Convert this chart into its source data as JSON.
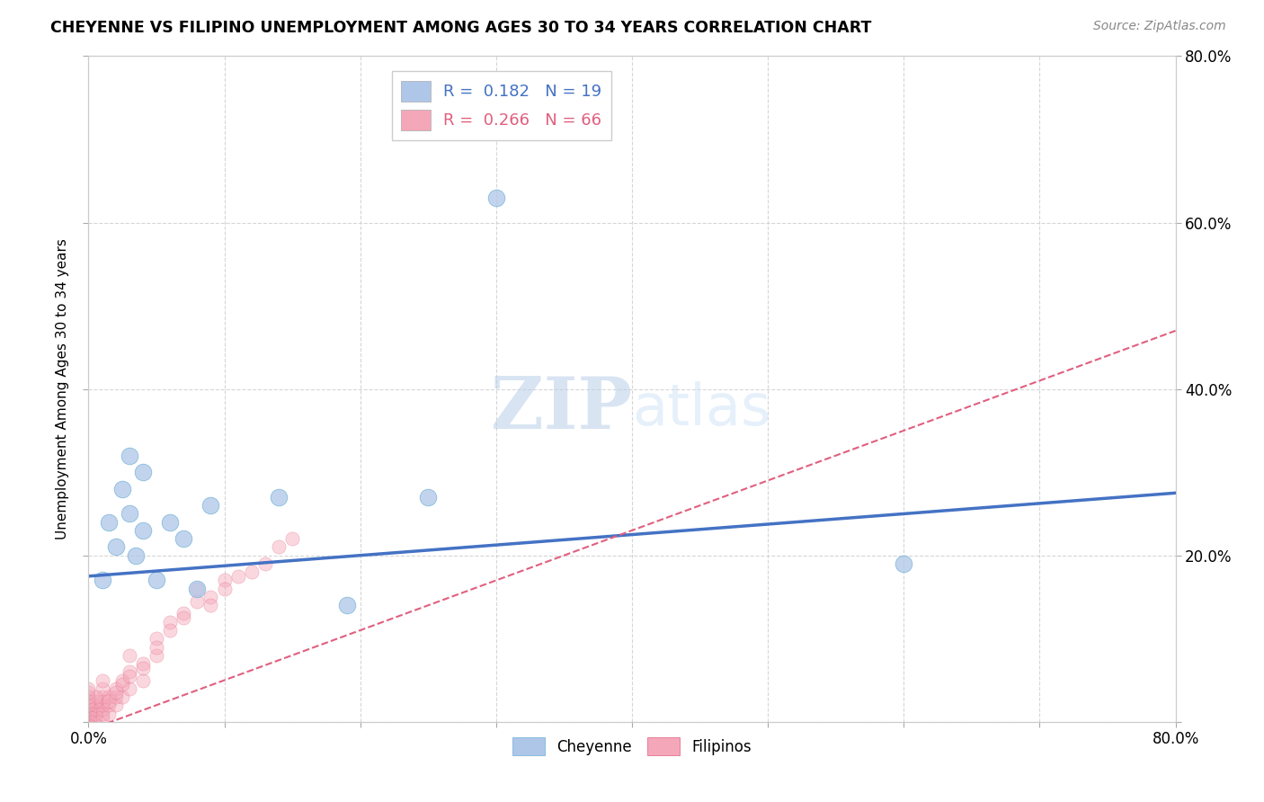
{
  "title": "CHEYENNE VS FILIPINO UNEMPLOYMENT AMONG AGES 30 TO 34 YEARS CORRELATION CHART",
  "source": "Source: ZipAtlas.com",
  "ylabel": "Unemployment Among Ages 30 to 34 years",
  "xlabel": "",
  "xlim": [
    0.0,
    0.8
  ],
  "ylim": [
    0.0,
    0.8
  ],
  "xticks": [
    0.0,
    0.1,
    0.2,
    0.3,
    0.4,
    0.5,
    0.6,
    0.7,
    0.8
  ],
  "yticks": [
    0.0,
    0.2,
    0.4,
    0.6,
    0.8
  ],
  "xtick_labels": [
    "0.0%",
    "",
    "",
    "",
    "",
    "",
    "",
    "",
    "80.0%"
  ],
  "ytick_labels_right": [
    "",
    "20.0%",
    "40.0%",
    "60.0%",
    "80.0%"
  ],
  "legend_entries": [
    {
      "label": "R =  0.182   N = 19",
      "color": "#aec6e8",
      "text_color": "#4472c4"
    },
    {
      "label": "R =  0.266   N = 66",
      "color": "#f4a7b9",
      "text_color": "#e05f7f"
    }
  ],
  "cheyenne_scatter": {
    "x": [
      0.01,
      0.015,
      0.02,
      0.025,
      0.03,
      0.03,
      0.035,
      0.04,
      0.04,
      0.05,
      0.06,
      0.07,
      0.08,
      0.09,
      0.14,
      0.6,
      0.19,
      0.25,
      0.3
    ],
    "y": [
      0.17,
      0.24,
      0.21,
      0.28,
      0.25,
      0.32,
      0.2,
      0.23,
      0.3,
      0.17,
      0.24,
      0.22,
      0.16,
      0.26,
      0.27,
      0.19,
      0.14,
      0.27,
      0.63
    ],
    "color": "#aec6e8",
    "edge_color": "#6baed6",
    "size": 180,
    "alpha": 0.75
  },
  "filipino_scatter": {
    "x": [
      0.0,
      0.0,
      0.0,
      0.0,
      0.0,
      0.0,
      0.0,
      0.0,
      0.0,
      0.0,
      0.005,
      0.005,
      0.005,
      0.005,
      0.005,
      0.01,
      0.01,
      0.01,
      0.01,
      0.01,
      0.015,
      0.015,
      0.015,
      0.02,
      0.02,
      0.02,
      0.025,
      0.025,
      0.03,
      0.03,
      0.03,
      0.04,
      0.04,
      0.05,
      0.05,
      0.06,
      0.07,
      0.08,
      0.09,
      0.1,
      0.01,
      0.01,
      0.01,
      0.005,
      0.005,
      0.0,
      0.0,
      0.0,
      0.0,
      0.0,
      0.015,
      0.02,
      0.025,
      0.03,
      0.04,
      0.05,
      0.06,
      0.07,
      0.08,
      0.09,
      0.1,
      0.11,
      0.12,
      0.13,
      0.14,
      0.15
    ],
    "y": [
      0.0,
      0.0,
      0.0,
      0.005,
      0.005,
      0.005,
      0.01,
      0.01,
      0.015,
      0.02,
      0.0,
      0.005,
      0.01,
      0.015,
      0.02,
      0.005,
      0.01,
      0.015,
      0.02,
      0.025,
      0.01,
      0.02,
      0.03,
      0.02,
      0.03,
      0.04,
      0.03,
      0.05,
      0.04,
      0.06,
      0.08,
      0.05,
      0.07,
      0.08,
      0.1,
      0.12,
      0.13,
      0.16,
      0.15,
      0.17,
      0.03,
      0.04,
      0.05,
      0.025,
      0.03,
      0.02,
      0.025,
      0.03,
      0.035,
      0.04,
      0.025,
      0.035,
      0.045,
      0.055,
      0.065,
      0.09,
      0.11,
      0.125,
      0.145,
      0.14,
      0.16,
      0.175,
      0.18,
      0.19,
      0.21,
      0.22
    ],
    "color": "#f4a7b9",
    "edge_color": "#e05f7f",
    "size": 120,
    "alpha": 0.45
  },
  "cheyenne_line": {
    "x": [
      0.0,
      0.8
    ],
    "y": [
      0.175,
      0.275
    ],
    "color": "#4472c4",
    "linewidth": 2.5
  },
  "filipino_line": {
    "x": [
      0.0,
      0.8
    ],
    "y": [
      -0.01,
      0.47
    ],
    "color": "#e05f7f",
    "linewidth": 1.5,
    "linestyle": "--"
  },
  "watermark_ZIP": "ZIP",
  "watermark_atlas": "atlas",
  "background_color": "#ffffff",
  "grid_color": "#cccccc"
}
